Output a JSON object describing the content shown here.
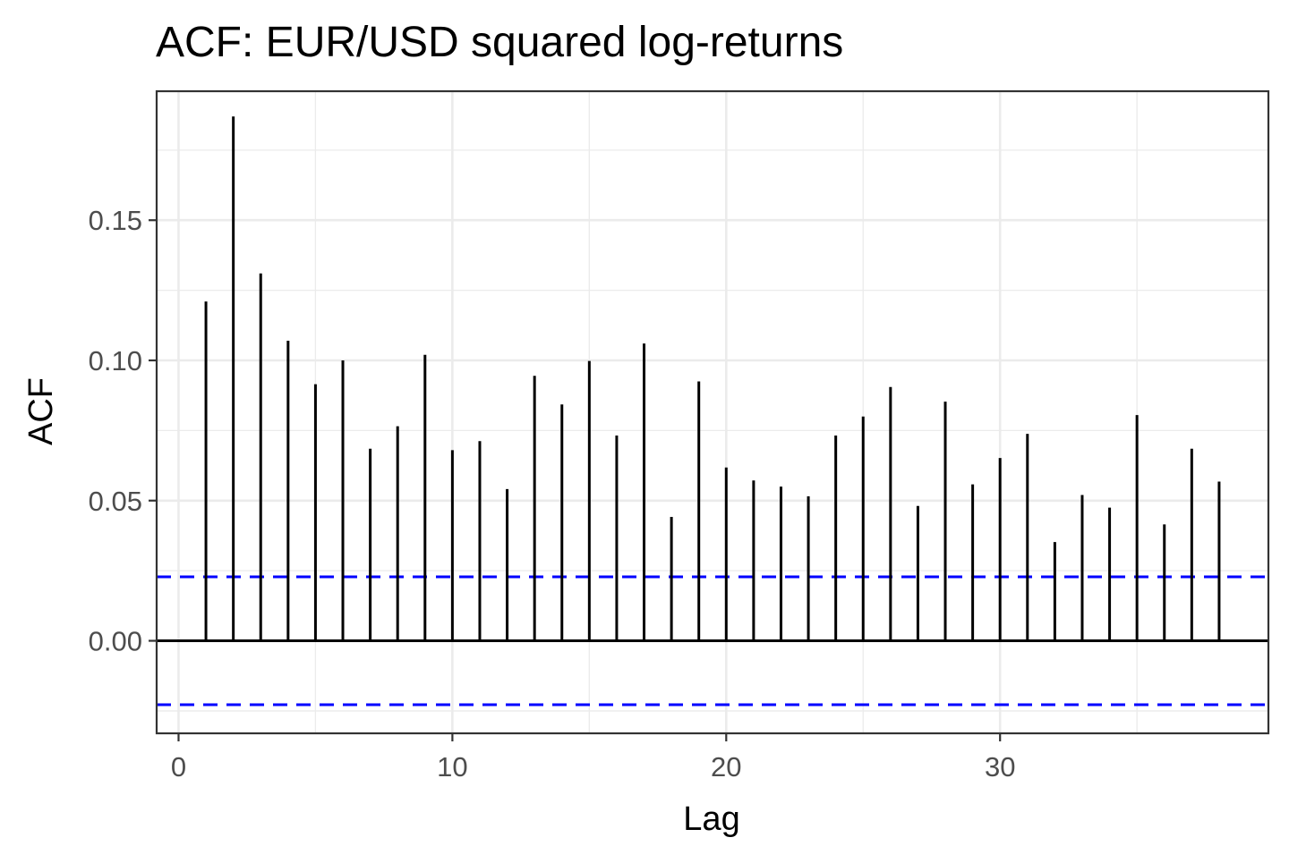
{
  "chart_data": {
    "type": "bar",
    "title": "ACF: EUR/USD squared log-returns",
    "xlabel": "Lag",
    "ylabel": "ACF",
    "lags": [
      1,
      2,
      3,
      4,
      5,
      6,
      7,
      8,
      9,
      10,
      11,
      12,
      13,
      14,
      15,
      16,
      17,
      18,
      19,
      20,
      21,
      22,
      23,
      24,
      25,
      26,
      27,
      28,
      29,
      30,
      31,
      32,
      33,
      34,
      35,
      36,
      37,
      38
    ],
    "values": [
      0.121,
      0.187,
      0.131,
      0.107,
      0.0915,
      0.1,
      0.0685,
      0.0765,
      0.102,
      0.068,
      0.0712,
      0.0541,
      0.0945,
      0.0843,
      0.0998,
      0.0732,
      0.106,
      0.0442,
      0.0925,
      0.0618,
      0.0572,
      0.055,
      0.0515,
      0.0732,
      0.08,
      0.0905,
      0.0481,
      0.0853,
      0.0558,
      0.0652,
      0.0738,
      0.0352,
      0.052,
      0.0475,
      0.0805,
      0.0415,
      0.0685,
      0.0568
    ],
    "confidence_bound": 0.0228,
    "xlim": [
      -0.8,
      39.8
    ],
    "ylim": [
      -0.033,
      0.196
    ],
    "x_ticks": [
      0,
      10,
      20,
      30
    ],
    "x_tick_labels": [
      "0",
      "10",
      "20",
      "30"
    ],
    "y_ticks": [
      0,
      0.05,
      0.1,
      0.15
    ],
    "y_tick_labels": [
      "0.00",
      "0.05",
      "0.10",
      "0.15"
    ],
    "grid": true,
    "colors": {
      "bar": "#000000",
      "confidence_line": "#0000ff",
      "grid": "#ebebeb",
      "panel_border": "#333333",
      "tick_text": "#4d4d4d"
    }
  }
}
